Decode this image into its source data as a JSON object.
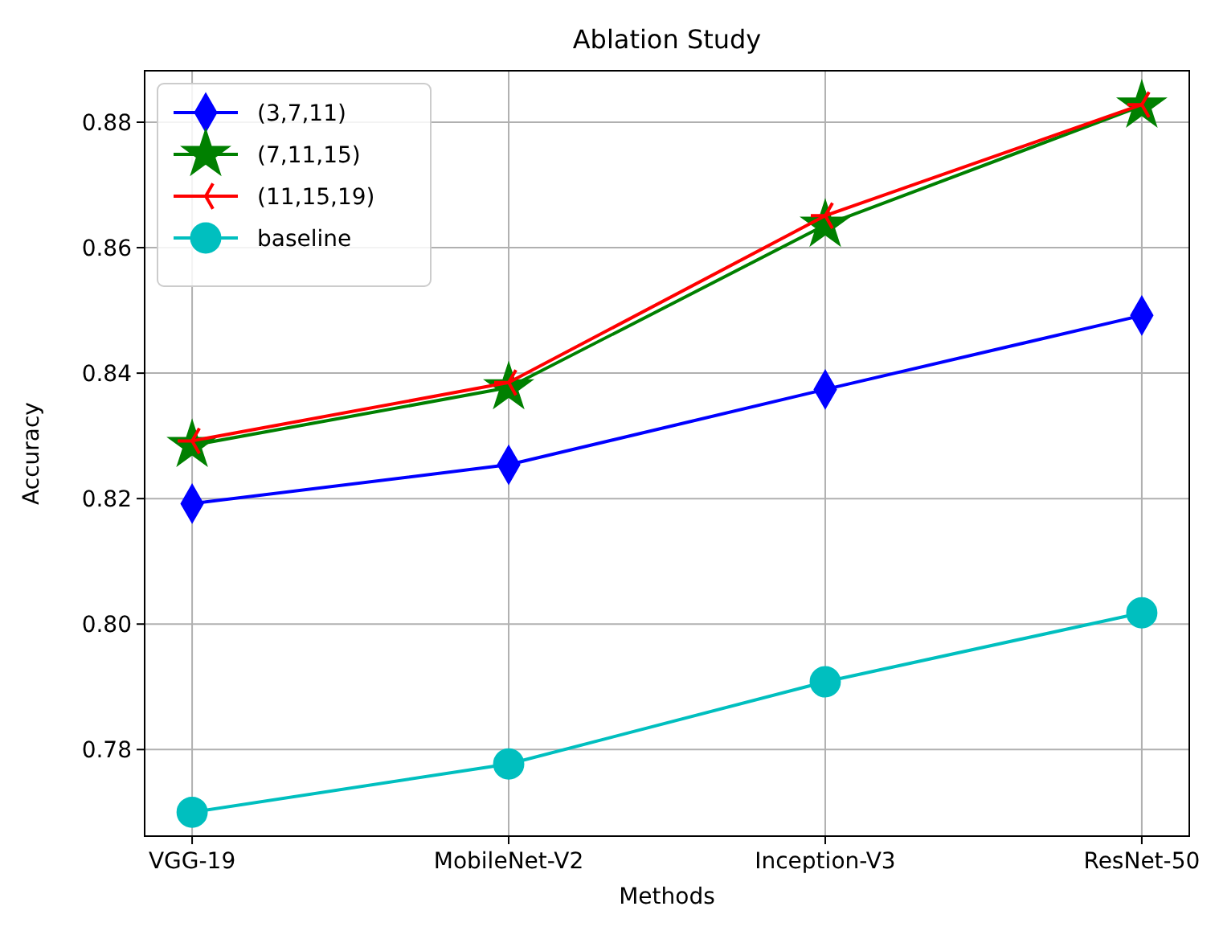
{
  "chart_data": {
    "type": "line",
    "title": "Ablation Study",
    "xlabel": "Methods",
    "ylabel": "Accuracy",
    "categories": [
      "VGG-19",
      "MobileNet-V2",
      "Inception-V3",
      "ResNet-50"
    ],
    "series": [
      {
        "name": "(3,7,11)",
        "color": "#0000ff",
        "marker": "diamond",
        "values": [
          0.8192,
          0.8254,
          0.8374,
          0.8492
        ]
      },
      {
        "name": "(7,11,15)",
        "color": "#008000",
        "marker": "star",
        "values": [
          0.8285,
          0.8377,
          0.8636,
          0.8826
        ]
      },
      {
        "name": "(11,15,19)",
        "color": "#ff0000",
        "marker": "cross",
        "values": [
          0.8292,
          0.8385,
          0.8651,
          0.8828
        ]
      },
      {
        "name": "baseline",
        "color": "#00bfbf",
        "marker": "circle",
        "values": [
          0.77,
          0.7777,
          0.7908,
          0.8018
        ]
      }
    ],
    "ylim": [
      0.7662,
      0.8882
    ],
    "yticks": [
      {
        "value": 0.78,
        "label": "0.78"
      },
      {
        "value": 0.8,
        "label": "0.80"
      },
      {
        "value": 0.82,
        "label": "0.82"
      },
      {
        "value": 0.84,
        "label": "0.84"
      },
      {
        "value": 0.86,
        "label": "0.86"
      },
      {
        "value": 0.88,
        "label": "0.88"
      }
    ],
    "grid": true,
    "legend": "top left",
    "line_style": "solid"
  }
}
